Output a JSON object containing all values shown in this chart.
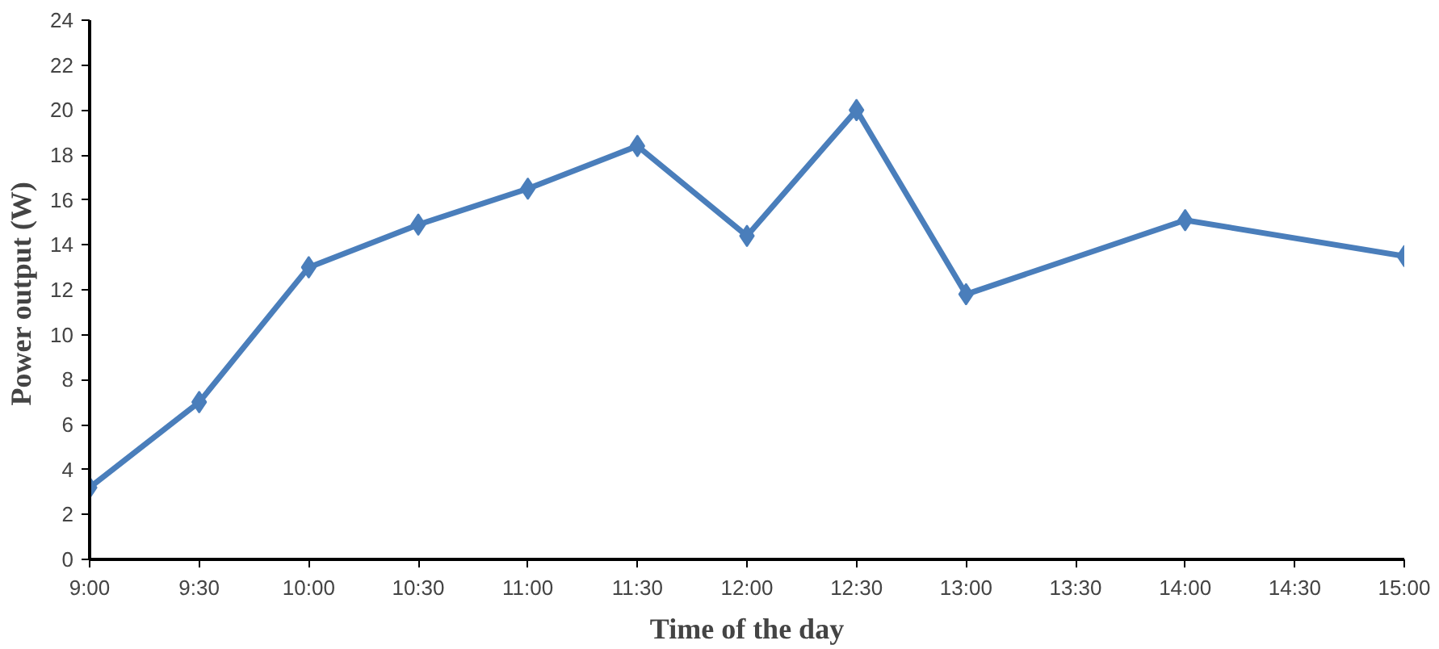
{
  "chart_data": {
    "type": "line",
    "xlabel": "Time of the day",
    "ylabel": "Power output  (W)",
    "x": [
      9,
      9.5,
      10,
      10.5,
      11,
      11.5,
      12,
      12.5,
      13,
      14,
      15
    ],
    "series": [
      {
        "color": "#4a7ebb",
        "values": [
          3.2,
          7.0,
          13.0,
          14.9,
          16.5,
          18.4,
          14.4,
          20.0,
          11.8,
          15.1,
          13.5
        ]
      }
    ],
    "xlim": [
      9,
      15
    ],
    "xticks": [
      {
        "value": 9,
        "label": "9:00"
      },
      {
        "value": 9.5,
        "label": "9:30"
      },
      {
        "value": 10,
        "label": "10:00"
      },
      {
        "value": 10.5,
        "label": "10:30"
      },
      {
        "value": 11,
        "label": "11:00"
      },
      {
        "value": 11.5,
        "label": "11:30"
      },
      {
        "value": 12,
        "label": "12:00"
      },
      {
        "value": 12.5,
        "label": "12:30"
      },
      {
        "value": 13,
        "label": "13:00"
      },
      {
        "value": 13.5,
        "label": "13:30"
      },
      {
        "value": 14,
        "label": "14:00"
      },
      {
        "value": 14.5,
        "label": "14:30"
      },
      {
        "value": 15,
        "label": "15:00"
      }
    ],
    "ylim": [
      0,
      24
    ],
    "yticks": [
      0,
      2,
      4,
      6,
      8,
      10,
      12,
      14,
      16,
      18,
      20,
      22,
      24
    ],
    "grid": false,
    "marker": "diamond",
    "line_style": "solid"
  }
}
